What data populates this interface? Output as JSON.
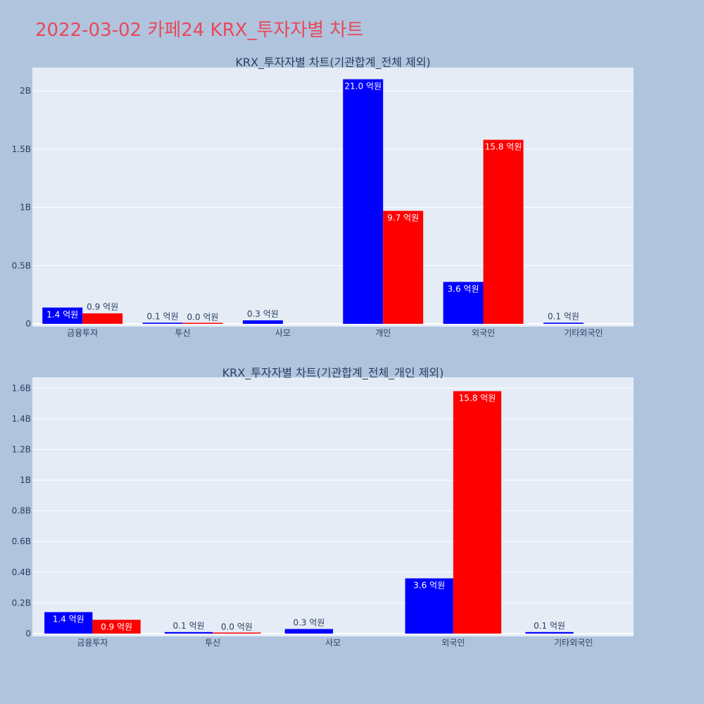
{
  "page": {
    "title": "2022-03-02 카페24 KRX_투자자별 차트"
  },
  "colors": {
    "background": "#b0c4de",
    "plot_background": "#e5ecf6",
    "title": "#e8495a",
    "buy": "#0000ff",
    "sell": "#ff0000"
  },
  "chart_data": [
    {
      "type": "bar",
      "title": "KRX_투자자별 차트(기관합계_전체 제외)",
      "categories": [
        "금융투자",
        "투신",
        "사모",
        "개인",
        "외국인",
        "기타외국인"
      ],
      "ylim": [
        0,
        2.2
      ],
      "yticks": [
        0,
        0.5,
        1,
        1.5,
        2
      ],
      "ytick_labels": [
        "0",
        "0.5B",
        "1B",
        "1.5B",
        "2B"
      ],
      "series": [
        {
          "color": "#0000ff",
          "values": [
            0.14,
            0.01,
            0.03,
            2.1,
            0.36,
            0.01
          ],
          "labels": [
            "1.4 억원",
            "0.1 억원",
            "0.3 억원",
            "21.0 억원",
            "3.6 억원",
            "0.1 억원"
          ]
        },
        {
          "color": "#ff0000",
          "values": [
            0.09,
            0.002,
            0,
            0.97,
            1.58,
            0
          ],
          "labels": [
            "0.9 억원",
            "0.0 억원",
            "",
            "9.7 억원",
            "15.8 억원",
            ""
          ]
        }
      ]
    },
    {
      "type": "bar",
      "title": "KRX_투자자별 차트(기관합계_전체_개인 제외)",
      "categories": [
        "금융투자",
        "투신",
        "사모",
        "외국인",
        "기타외국인"
      ],
      "ylim": [
        0,
        1.67
      ],
      "yticks": [
        0,
        0.2,
        0.4,
        0.6,
        0.8,
        1,
        1.2,
        1.4,
        1.6
      ],
      "ytick_labels": [
        "0",
        "0.2B",
        "0.4B",
        "0.6B",
        "0.8B",
        "1B",
        "1.2B",
        "1.4B",
        "1.6B"
      ],
      "series": [
        {
          "color": "#0000ff",
          "values": [
            0.14,
            0.01,
            0.03,
            0.36,
            0.01
          ],
          "labels": [
            "1.4 억원",
            "0.1 억원",
            "0.3 억원",
            "3.6 억원",
            "0.1 억원"
          ]
        },
        {
          "color": "#ff0000",
          "values": [
            0.09,
            0.002,
            0,
            1.58,
            0
          ],
          "labels": [
            "0.9 억원",
            "0.0 억원",
            "",
            "15.8 억원",
            ""
          ]
        }
      ]
    }
  ]
}
